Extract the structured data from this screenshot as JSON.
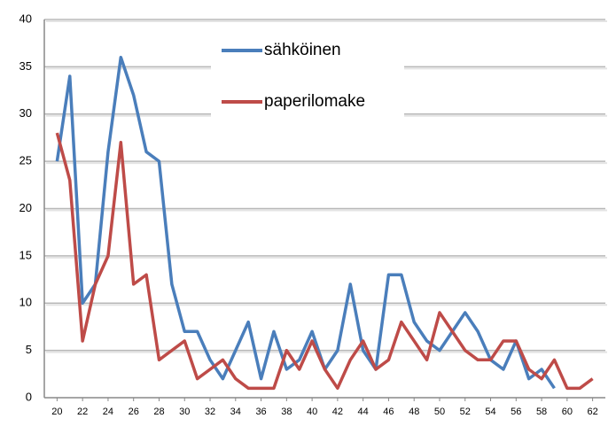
{
  "chart_data": {
    "type": "line",
    "x": [
      20,
      21,
      22,
      23,
      24,
      25,
      26,
      27,
      28,
      29,
      30,
      31,
      32,
      33,
      34,
      35,
      36,
      37,
      38,
      39,
      40,
      41,
      42,
      43,
      44,
      45,
      46,
      47,
      48,
      49,
      50,
      51,
      52,
      53,
      54,
      55,
      56,
      57,
      58,
      59,
      60,
      61,
      62
    ],
    "series": [
      {
        "name": "sähköinen",
        "color": "#4a7ebb",
        "values": [
          25,
          34,
          10,
          12,
          26,
          36,
          32,
          26,
          25,
          12,
          7,
          7,
          4,
          2,
          5,
          8,
          2,
          7,
          3,
          4,
          7,
          3,
          5,
          12,
          5,
          3,
          13,
          13,
          8,
          6,
          5,
          7,
          9,
          7,
          4,
          3,
          6,
          2,
          3,
          1,
          null,
          null,
          null
        ]
      },
      {
        "name": "paperilomake",
        "color": "#be4b48",
        "values": [
          28,
          23,
          6,
          12,
          15,
          27,
          12,
          13,
          4,
          5,
          6,
          2,
          3,
          4,
          2,
          1,
          1,
          1,
          5,
          3,
          6,
          3,
          1,
          4,
          6,
          3,
          4,
          8,
          6,
          4,
          9,
          7,
          5,
          4,
          4,
          6,
          6,
          3,
          2,
          4,
          1,
          1,
          2
        ]
      }
    ],
    "xlim": [
      19,
      63
    ],
    "xticks": [
      20,
      22,
      24,
      26,
      28,
      30,
      32,
      34,
      36,
      38,
      40,
      42,
      44,
      46,
      48,
      50,
      52,
      54,
      56,
      58,
      60,
      62
    ],
    "ylim": [
      0,
      40
    ],
    "yticks": [
      0,
      5,
      10,
      15,
      20,
      25,
      30,
      35,
      40
    ],
    "grid": true
  }
}
